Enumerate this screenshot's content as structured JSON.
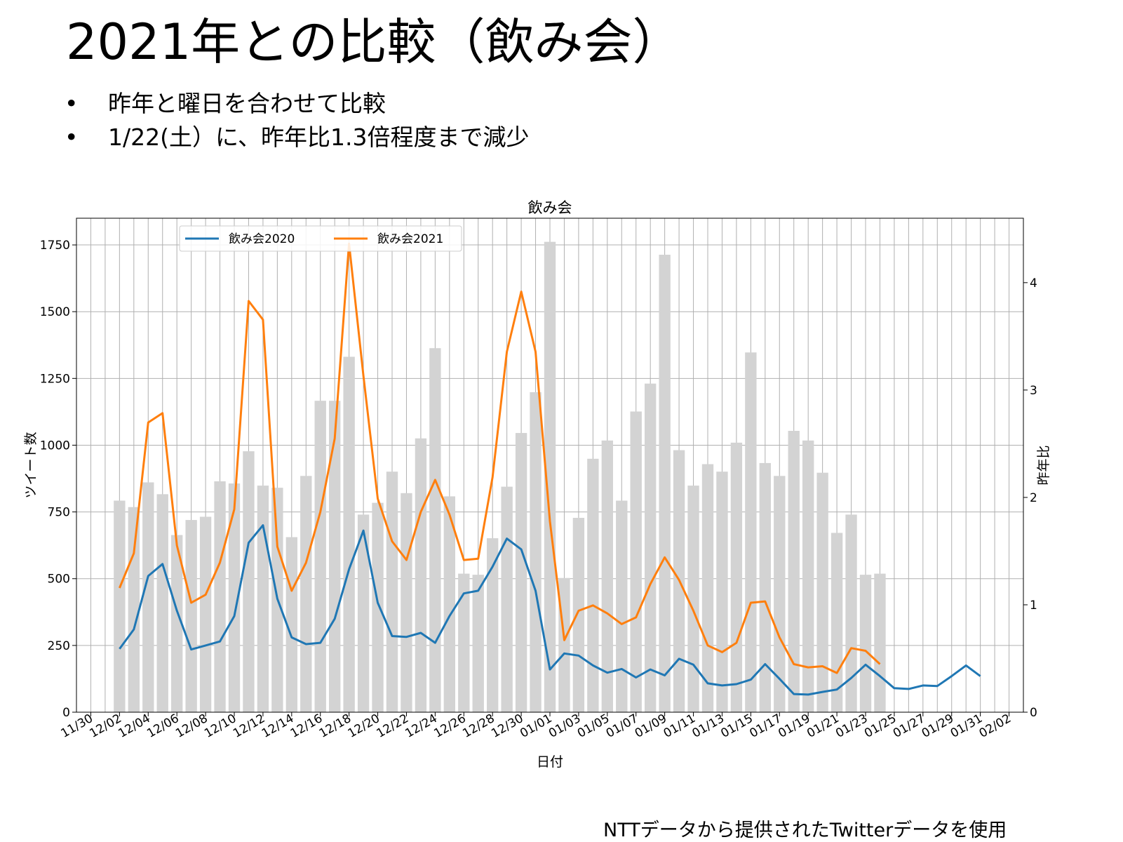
{
  "slide": {
    "title": "2021年との比較（飲み会）",
    "bullets": [
      "昨年と曜日を合わせて比較",
      "1/22(土）に、昨年比1.3倍程度まで減少"
    ],
    "bullet_marker": "•",
    "footer": "NTTデータから提供されたTwitterデータを使用"
  },
  "chart_data": {
    "type": "bar+line",
    "title": "飲み会",
    "xlabel": "日付",
    "ylabel_left": "ツイート数",
    "ylabel_right": "昨年比",
    "ylim_left": [
      0,
      1850
    ],
    "ylim_right": [
      0,
      4.6
    ],
    "yticks_left": [
      0,
      250,
      500,
      750,
      1000,
      1250,
      1500,
      1750
    ],
    "yticks_right": [
      0,
      1,
      2,
      3,
      4
    ],
    "x_start": "11/29",
    "x_end": "02/03",
    "xtick_labels": [
      "11/30",
      "12/02",
      "12/04",
      "12/06",
      "12/08",
      "12/10",
      "12/12",
      "12/14",
      "12/16",
      "12/18",
      "12/20",
      "12/22",
      "12/24",
      "12/26",
      "12/28",
      "12/30",
      "01/01",
      "01/03",
      "01/05",
      "01/07",
      "01/09",
      "01/11",
      "01/13",
      "01/15",
      "01/17",
      "01/19",
      "01/21",
      "01/23",
      "01/25",
      "01/27",
      "01/29",
      "01/31",
      "02/02"
    ],
    "grid": true,
    "legend_position": "top-left",
    "legend_border_color": "#cccccc",
    "colors": {
      "series2020": "#1f77b4",
      "series2021": "#ff7f0e",
      "ratio_bars": "#d3d3d3",
      "grid": "#b0b0b0"
    },
    "series": [
      {
        "name": "飲み会2020",
        "axis": "left",
        "kind": "line",
        "start": "12/02",
        "values": [
          237,
          310,
          510,
          555,
          380,
          235,
          250,
          265,
          360,
          635,
          700,
          425,
          280,
          255,
          260,
          350,
          535,
          680,
          410,
          285,
          282,
          297,
          260,
          360,
          445,
          455,
          545,
          650,
          610,
          455,
          160,
          220,
          212,
          175,
          148,
          162,
          130,
          160,
          138,
          200,
          178,
          108,
          100,
          105,
          122,
          180,
          125,
          68,
          66,
          76,
          85,
          128,
          178,
          135,
          90,
          87,
          100,
          98,
          135,
          175,
          135
        ]
      },
      {
        "name": "飲み会2021",
        "axis": "left",
        "kind": "line",
        "start": "12/02",
        "values": [
          465,
          595,
          1085,
          1120,
          625,
          410,
          440,
          560,
          760,
          1540,
          1470,
          620,
          455,
          560,
          750,
          1025,
          1755,
          1260,
          800,
          640,
          570,
          750,
          870,
          740,
          570,
          575,
          880,
          1350,
          1575,
          1350,
          715,
          270,
          380,
          400,
          370,
          330,
          355,
          480,
          580,
          495,
          380,
          250,
          225,
          260,
          410,
          415,
          280,
          180,
          168,
          172,
          147,
          240,
          230,
          180
        ]
      },
      {
        "name": "昨年比",
        "axis": "right",
        "kind": "bar",
        "start": "12/02",
        "values": [
          1.97,
          1.91,
          2.14,
          2.03,
          1.65,
          1.79,
          1.82,
          2.15,
          2.13,
          2.43,
          2.11,
          2.09,
          1.63,
          2.2,
          2.9,
          2.9,
          3.31,
          1.84,
          1.95,
          2.24,
          2.04,
          2.55,
          3.39,
          2.01,
          1.29,
          1.28,
          1.62,
          2.1,
          2.6,
          2.98,
          4.38,
          1.25,
          1.81,
          2.36,
          2.53,
          1.97,
          2.8,
          3.06,
          4.26,
          2.44,
          2.11,
          2.31,
          2.24,
          2.51,
          3.35,
          2.32,
          2.2,
          2.62,
          2.53,
          2.23,
          1.67,
          1.84,
          1.28,
          1.29
        ]
      }
    ]
  }
}
